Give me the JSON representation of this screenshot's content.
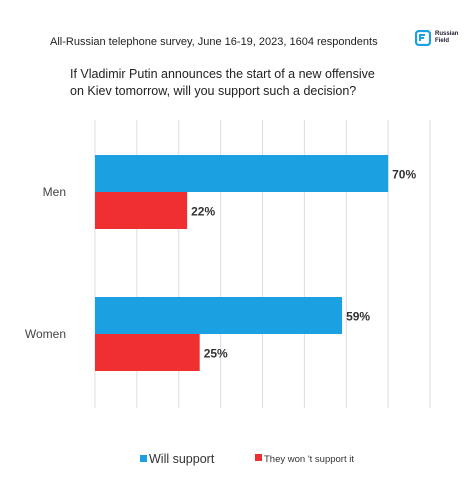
{
  "header": {
    "survey_line": "All-Russian telephone survey, June 16-19, 2023, 1604 respondents",
    "logo_text": "Russian\nField",
    "logo_icon": "russian-field-logo",
    "question_line1": "If Vladimir Putin announces the start of a new offensive",
    "question_line2": "on Kiev tomorrow, will you support such a decision?"
  },
  "colors": {
    "will_support": "#1ba1e2",
    "wont_support": "#f03030",
    "grid": "#dddddd",
    "logo": "#1ba1e2"
  },
  "chart_data": {
    "type": "bar",
    "orientation": "horizontal",
    "title": "If Vladimir Putin announces the start of a new offensive on Kiev tomorrow, will you support such a decision?",
    "categories": [
      "Men",
      "Women"
    ],
    "series": [
      {
        "name": "Will support",
        "values": [
          70,
          59
        ],
        "labels": [
          "70%",
          "59%"
        ]
      },
      {
        "name": "They won 't support it",
        "values": [
          22,
          25
        ],
        "labels": [
          "22%",
          "25%"
        ]
      }
    ],
    "xlim": [
      0,
      80
    ],
    "grid": true,
    "legend": "bottom"
  }
}
